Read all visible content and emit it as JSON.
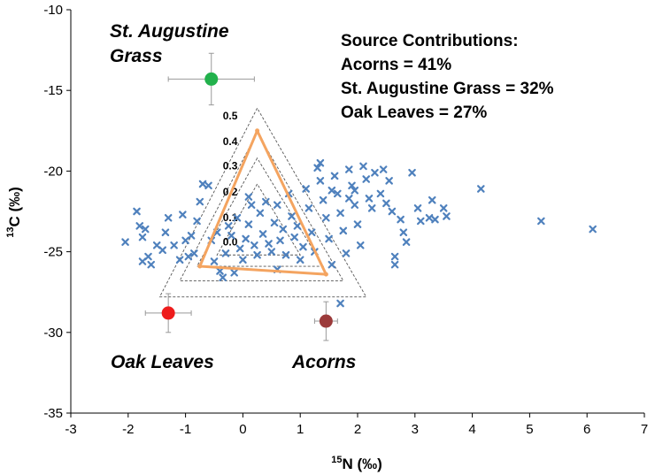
{
  "chart_data": {
    "type": "scatter",
    "xlabel_sup": "15",
    "xlabel": "N (‰)",
    "ylabel_sup": "13",
    "ylabel": "C (‰)",
    "xlim": [
      -3,
      7
    ],
    "ylim": [
      -35,
      -10
    ],
    "x_ticks": [
      -3,
      -2,
      -1,
      0,
      1,
      2,
      3,
      4,
      5,
      6,
      7
    ],
    "y_ticks": [
      -10,
      -15,
      -20,
      -25,
      -30,
      -35
    ],
    "grid": false,
    "sources": [
      {
        "name": "St. Augustine Grass",
        "lines": [
          "St. Augustine",
          "Grass"
        ],
        "x": -0.55,
        "y": -14.3,
        "x_err": 0.75,
        "y_err": 1.6,
        "color": "#22b14c"
      },
      {
        "name": "Oak Leaves",
        "lines": [
          "Oak Leaves"
        ],
        "x": -1.3,
        "y": -28.8,
        "x_err": 0.4,
        "y_err": 1.2,
        "color": "#ee1c1c"
      },
      {
        "name": "Acorns",
        "lines": [
          "Acorns"
        ],
        "x": 1.45,
        "y": -29.3,
        "x_err": 0.2,
        "y_err": 1.2,
        "color": "#9b3a3a"
      }
    ],
    "mixing_triangle": {
      "color": "#f4a460",
      "points": [
        [
          0.25,
          -17.5
        ],
        [
          -0.75,
          -25.9
        ],
        [
          1.45,
          -26.4
        ]
      ]
    },
    "contour_triangles": [
      [
        [
          0.25,
          -16.1
        ],
        [
          -1.45,
          -27.8
        ],
        [
          2.15,
          -27.8
        ]
      ],
      [
        [
          0.25,
          -17.6
        ],
        [
          -1.1,
          -26.8
        ],
        [
          1.75,
          -26.8
        ]
      ],
      [
        [
          0.25,
          -19.2
        ],
        [
          -0.8,
          -25.9
        ],
        [
          1.4,
          -25.9
        ]
      ],
      [
        [
          0.25,
          -20.8
        ],
        [
          -0.45,
          -25.2
        ],
        [
          1.0,
          -25.2
        ]
      ]
    ],
    "contour_labels": [
      {
        "text": "0.5",
        "x": -0.35,
        "y": -16.8
      },
      {
        "text": "0.4",
        "x": -0.35,
        "y": -18.4
      },
      {
        "text": "0.3",
        "x": -0.35,
        "y": -19.9
      },
      {
        "text": "0.2",
        "x": -0.35,
        "y": -21.5
      },
      {
        "text": "0.1",
        "x": -0.35,
        "y": -23.1
      },
      {
        "text": "0.0",
        "x": -0.35,
        "y": -24.6
      }
    ],
    "consumers": {
      "color": "#4f81bd",
      "points": [
        [
          -2.05,
          -24.4
        ],
        [
          -1.85,
          -22.5
        ],
        [
          -1.8,
          -23.4
        ],
        [
          -1.75,
          -24.1
        ],
        [
          -1.7,
          -23.6
        ],
        [
          -1.65,
          -25.3
        ],
        [
          -1.75,
          -25.6
        ],
        [
          -1.6,
          -25.8
        ],
        [
          -1.5,
          -24.6
        ],
        [
          -1.4,
          -24.9
        ],
        [
          -1.35,
          -23.8
        ],
        [
          -1.3,
          -22.9
        ],
        [
          -1.2,
          -24.6
        ],
        [
          -1.1,
          -25.5
        ],
        [
          -1.05,
          -22.7
        ],
        [
          -1.0,
          -24.3
        ],
        [
          -0.95,
          -25.3
        ],
        [
          -0.9,
          -24.0
        ],
        [
          -0.85,
          -25.1
        ],
        [
          -0.8,
          -23.1
        ],
        [
          -0.75,
          -21.9
        ],
        [
          -0.7,
          -20.8
        ],
        [
          -0.6,
          -20.9
        ],
        [
          -0.55,
          -24.3
        ],
        [
          -0.5,
          -25.6
        ],
        [
          -0.45,
          -23.8
        ],
        [
          -0.4,
          -26.2
        ],
        [
          -0.35,
          -26.6
        ],
        [
          -0.3,
          -25.1
        ],
        [
          -0.25,
          -23.4
        ],
        [
          -0.2,
          -24.0
        ],
        [
          -0.1,
          -22.9
        ],
        [
          -0.05,
          -24.8
        ],
        [
          0.0,
          -25.5
        ],
        [
          0.05,
          -24.2
        ],
        [
          0.1,
          -21.6
        ],
        [
          0.1,
          -23.3
        ],
        [
          0.15,
          -22.1
        ],
        [
          0.2,
          -24.6
        ],
        [
          0.25,
          -25.2
        ],
        [
          0.3,
          -22.6
        ],
        [
          0.35,
          -23.9
        ],
        [
          0.4,
          -21.9
        ],
        [
          0.45,
          -24.5
        ],
        [
          0.5,
          -25.0
        ],
        [
          0.55,
          -23.2
        ],
        [
          0.6,
          -22.1
        ],
        [
          0.65,
          -24.3
        ],
        [
          0.7,
          -23.6
        ],
        [
          0.75,
          -25.2
        ],
        [
          0.8,
          -21.4
        ],
        [
          0.85,
          -22.8
        ],
        [
          0.9,
          -24.1
        ],
        [
          0.95,
          -23.4
        ],
        [
          1.0,
          -25.5
        ],
        [
          1.05,
          -24.7
        ],
        [
          1.1,
          -21.1
        ],
        [
          1.15,
          -22.3
        ],
        [
          1.2,
          -23.8
        ],
        [
          1.25,
          -25.0
        ],
        [
          1.3,
          -19.8
        ],
        [
          1.35,
          -20.6
        ],
        [
          1.4,
          -21.8
        ],
        [
          1.45,
          -22.9
        ],
        [
          1.5,
          -24.2
        ],
        [
          1.55,
          -25.8
        ],
        [
          1.6,
          -20.3
        ],
        [
          1.65,
          -21.4
        ],
        [
          1.7,
          -22.6
        ],
        [
          1.75,
          -23.7
        ],
        [
          1.8,
          -25.1
        ],
        [
          1.85,
          -19.9
        ],
        [
          1.9,
          -20.9
        ],
        [
          1.95,
          -22.1
        ],
        [
          2.0,
          -23.3
        ],
        [
          2.05,
          -24.6
        ],
        [
          2.1,
          -19.7
        ],
        [
          2.15,
          -20.5
        ],
        [
          2.2,
          -21.7
        ],
        [
          2.25,
          -22.3
        ],
        [
          2.3,
          -20.1
        ],
        [
          2.4,
          -21.4
        ],
        [
          2.5,
          -22.0
        ],
        [
          2.55,
          -20.6
        ],
        [
          2.6,
          -22.5
        ],
        [
          2.65,
          -25.3
        ],
        [
          2.65,
          -25.8
        ],
        [
          2.75,
          -23.0
        ],
        [
          2.8,
          -23.8
        ],
        [
          2.85,
          -24.4
        ],
        [
          2.95,
          -20.1
        ],
        [
          3.05,
          -22.3
        ],
        [
          3.1,
          -23.1
        ],
        [
          3.25,
          -22.9
        ],
        [
          3.3,
          -21.8
        ],
        [
          3.35,
          -23.0
        ],
        [
          3.5,
          -22.3
        ],
        [
          3.55,
          -22.8
        ],
        [
          4.15,
          -21.1
        ],
        [
          5.2,
          -23.1
        ],
        [
          6.1,
          -23.6
        ],
        [
          1.7,
          -28.2
        ],
        [
          1.35,
          -19.5
        ],
        [
          1.55,
          -21.2
        ],
        [
          1.95,
          -21.2
        ],
        [
          0.6,
          -26.1
        ],
        [
          -0.15,
          -26.3
        ],
        [
          1.85,
          -21.7
        ],
        [
          2.45,
          -19.9
        ]
      ]
    }
  },
  "info_box": {
    "title": "Source Contributions:",
    "lines": [
      "Acorns = 41%",
      "St. Augustine Grass = 32%",
      "Oak Leaves = 27%"
    ]
  }
}
